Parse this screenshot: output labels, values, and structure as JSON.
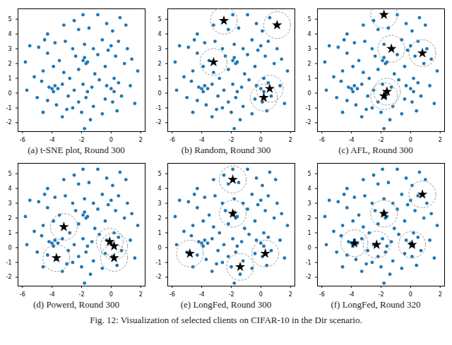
{
  "chart_data": {
    "type": "scatter",
    "caption": "Fig. 12: Visualization of selected clients on CIFAR-10 in the Dir scenario.",
    "xlim": [
      -6.3,
      2.3
    ],
    "ylim": [
      -2.6,
      5.7
    ],
    "xticks": [
      -6,
      -4,
      -2,
      0,
      2
    ],
    "yticks": [
      -2,
      -1,
      0,
      1,
      2,
      3,
      4,
      5
    ],
    "points": {
      "color": "#1f77b4",
      "x": [
        -4.3,
        -3.2,
        -2.5,
        -2.2,
        -1.5,
        -0.9,
        -0.3,
        0.6,
        1.0,
        -1.9,
        0.1,
        -5.5,
        -4.9,
        -4.5,
        -3.8,
        -3.1,
        -2.6,
        -1.8,
        -1.2,
        -0.6,
        0.0,
        0.5,
        1.1,
        -0.2,
        -5.8,
        -4.3,
        -3.5,
        -3.9,
        -2.4,
        -1.9,
        -1.8,
        -1.6,
        -1.7,
        -0.9,
        0.3,
        1.4,
        0.9,
        -4.6,
        -5.2,
        -3.2,
        -2.8,
        -2.2,
        -1.1,
        -0.4,
        0.2,
        1.8,
        -0.8,
        -5.7,
        -4.2,
        -4.0,
        -3.8,
        -3.6,
        -3.9,
        -3.3,
        -2.5,
        -1.9,
        -1.6,
        -1.3,
        -0.3,
        0.0,
        0.2,
        0.5,
        1.3,
        -4.7,
        -5.0,
        -4.3,
        -3.7,
        -2.9,
        -2.2,
        -1.7,
        -1.2,
        -0.4,
        0.1,
        0.7,
        1.6,
        -2.6,
        -4.6,
        -3.3,
        -2.0,
        -1.4,
        -0.6,
        0.4,
        -1.8,
        -3.0
      ],
      "y": [
        4.0,
        4.6,
        4.9,
        4.3,
        4.4,
        5.3,
        4.7,
        5.1,
        4.6,
        5.3,
        4.2,
        3.2,
        3.1,
        3.6,
        3.4,
        3.5,
        3.0,
        3.3,
        3.0,
        3.6,
        3.2,
        3.5,
        3.0,
        2.9,
        2.1,
        2.7,
        2.2,
        1.8,
        2.5,
        2.2,
        2.4,
        2.1,
        2.0,
        2.6,
        2.5,
        2.3,
        2.0,
        1.5,
        1.1,
        1.4,
        1.0,
        1.6,
        1.3,
        1.8,
        1.0,
        1.5,
        0.9,
        0.2,
        0.4,
        0.3,
        0.5,
        0.3,
        0.1,
        0.6,
        0.2,
        0.6,
        0.1,
        0.4,
        0.5,
        0.3,
        0.1,
        0.7,
        0.5,
        0.8,
        -0.3,
        -0.5,
        -0.8,
        -0.2,
        -0.6,
        -0.3,
        -0.9,
        -0.4,
        -0.6,
        -0.2,
        -0.7,
        -1.0,
        -1.3,
        -1.6,
        -1.3,
        -1.8,
        -1.4,
        -1.2,
        -2.4,
        -1.1
      ]
    },
    "panels": [
      {
        "title": "(a) t-SNE plot, Round 300",
        "selected": {
          "x": [],
          "y": []
        }
      },
      {
        "title": "(b) Random, Round 300",
        "selected": {
          "x": [
            -2.5,
            1.1,
            -3.2,
            0.6,
            0.2
          ],
          "y": [
            4.9,
            4.6,
            2.1,
            0.3,
            -0.3
          ]
        }
      },
      {
        "title": "(c) AFL, Round 300",
        "selected": {
          "x": [
            -1.8,
            -1.3,
            0.8,
            -1.8,
            -1.6
          ],
          "y": [
            5.3,
            3.0,
            2.7,
            -0.2,
            0.1
          ]
        }
      },
      {
        "title": "(d) Powerd, Round 300",
        "selected": {
          "x": [
            -3.2,
            -3.7,
            -0.1,
            0.2,
            0.2
          ],
          "y": [
            1.4,
            -0.7,
            0.4,
            0.1,
            -0.7
          ]
        }
      },
      {
        "title": "(e) LongFed, Round 300",
        "selected": {
          "x": [
            -1.9,
            -1.9,
            -4.8,
            -1.4,
            0.3
          ],
          "y": [
            4.6,
            2.3,
            -0.4,
            -1.3,
            -0.4
          ]
        }
      },
      {
        "title": "(f) LongFed, Round 320",
        "selected": {
          "x": [
            0.8,
            -1.8,
            -3.8,
            -2.3,
            0.1
          ],
          "y": [
            3.6,
            2.3,
            0.3,
            0.2,
            0.2
          ]
        }
      }
    ],
    "selected_style": {
      "marker": "star",
      "color": "#000000"
    }
  }
}
